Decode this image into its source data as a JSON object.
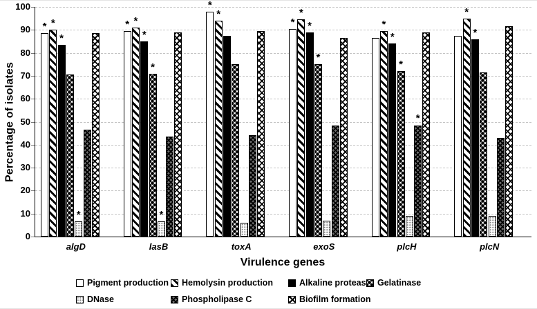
{
  "chart_data": {
    "type": "bar",
    "title": "",
    "xlabel": "Virulence genes",
    "ylabel": "Percentage of isolates",
    "ylim": [
      0,
      100
    ],
    "yticks": [
      0,
      10,
      20,
      30,
      40,
      50,
      60,
      70,
      80,
      90,
      100
    ],
    "grid": true,
    "legend_position": "bottom",
    "significance_marker": "*",
    "categories": [
      "algD",
      "lasB",
      "toxA",
      "exoS",
      "plcH",
      "plcN"
    ],
    "series": [
      {
        "name": "Pigment production",
        "pattern": "pigment",
        "values": [
          88.5,
          89.5,
          98,
          90.5,
          86.5,
          87.5
        ],
        "significant": [
          true,
          true,
          true,
          true,
          false,
          false
        ]
      },
      {
        "name": "Hemolysin production",
        "pattern": "hemolysin",
        "values": [
          90,
          91,
          94,
          94.5,
          89.5,
          95
        ],
        "significant": [
          true,
          true,
          true,
          true,
          true,
          true
        ]
      },
      {
        "name": "Alkaline protease",
        "pattern": "alkaline",
        "values": [
          83.5,
          85,
          87.5,
          89,
          84,
          86
        ],
        "significant": [
          true,
          true,
          false,
          true,
          true,
          true
        ]
      },
      {
        "name": "Gelatinase",
        "pattern": "gelatinase",
        "values": [
          70.5,
          71,
          75,
          75,
          72,
          71.5
        ],
        "significant": [
          false,
          true,
          false,
          true,
          true,
          false
        ]
      },
      {
        "name": "DNase",
        "pattern": "dnase",
        "values": [
          6.5,
          6.5,
          6,
          7,
          9,
          9
        ],
        "significant": [
          true,
          true,
          false,
          false,
          false,
          false
        ]
      },
      {
        "name": "Phospholipase C",
        "pattern": "phospholipase",
        "values": [
          46.5,
          43.5,
          44,
          48.5,
          48.5,
          43
        ],
        "significant": [
          false,
          false,
          false,
          false,
          true,
          false
        ]
      },
      {
        "name": "Biofilm formation",
        "pattern": "biofilm",
        "values": [
          88.5,
          89,
          89.5,
          86.5,
          89,
          91.5
        ],
        "significant": [
          false,
          false,
          false,
          false,
          false,
          false
        ]
      }
    ]
  }
}
